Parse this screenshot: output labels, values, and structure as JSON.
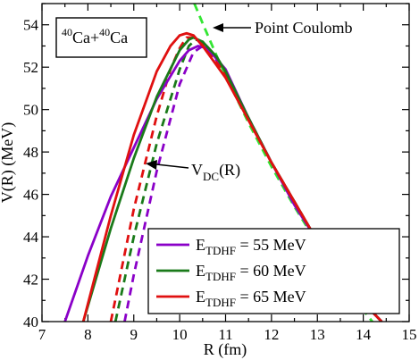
{
  "chart_data": {
    "type": "line",
    "title": "",
    "xlabel": "R (fm)",
    "ylabel": "V(R) (MeV)",
    "xlim": [
      7,
      15
    ],
    "ylim": [
      40,
      55
    ],
    "xticks": [
      "7",
      "8",
      "9",
      "10",
      "11",
      "12",
      "13",
      "14",
      "15"
    ],
    "yticks": [
      "40",
      "42",
      "44",
      "46",
      "48",
      "50",
      "52",
      "54"
    ],
    "grid": false,
    "legend_position": "bottom-right",
    "system_label": {
      "mass": "40",
      "element": "Ca",
      "plus": "+"
    },
    "annotations": {
      "point_coulomb": "Point Coulomb",
      "vdc_main": "V",
      "vdc_sub": "DC",
      "vdc_arg": "(R)"
    },
    "legend": [
      {
        "prefix": "E",
        "sub": "TDHF",
        "suffix": " = 55 MeV",
        "color": "#8a00c8"
      },
      {
        "prefix": "E",
        "sub": "TDHF",
        "suffix": " = 60 MeV",
        "color": "#1a7a1a"
      },
      {
        "prefix": "E",
        "sub": "TDHF",
        "suffix": " = 65 MeV",
        "color": "#e01010"
      }
    ],
    "series": [
      {
        "name": "E_TDHF = 55 MeV",
        "color": "#8a00c8",
        "dash": "solid",
        "x": [
          7.5,
          8.0,
          8.5,
          9.0,
          9.5,
          10.0,
          10.2,
          10.4,
          10.6,
          11.0,
          11.5,
          12.0,
          12.5,
          13.0,
          13.5,
          14.0,
          14.4
        ],
        "y": [
          40.0,
          43.1,
          45.9,
          48.2,
          50.5,
          52.3,
          52.8,
          53.0,
          52.9,
          51.9,
          49.6,
          47.5,
          45.5,
          43.8,
          42.3,
          40.9,
          40.0
        ]
      },
      {
        "name": "E_TDHF = 55 MeV (dashed)",
        "color": "#8a00c8",
        "dash": "dashed",
        "x": [
          8.8,
          9.0,
          9.5,
          10.0,
          10.3,
          10.5,
          10.7,
          11.0,
          11.5,
          12.0,
          13.0,
          14.0,
          14.4
        ],
        "y": [
          40.0,
          42.2,
          47.1,
          51.2,
          52.7,
          53.0,
          52.6,
          51.8,
          49.6,
          47.5,
          43.8,
          40.9,
          40.0
        ]
      },
      {
        "name": "E_TDHF = 60 MeV",
        "color": "#1a7a1a",
        "dash": "solid",
        "x": [
          7.9,
          8.5,
          9.0,
          9.5,
          10.0,
          10.2,
          10.3,
          10.5,
          10.8,
          11.0,
          11.5,
          12.0,
          13.0,
          14.0,
          14.4
        ],
        "y": [
          40.0,
          44.4,
          47.7,
          50.6,
          52.8,
          53.3,
          53.4,
          53.2,
          52.5,
          51.8,
          49.6,
          47.5,
          43.8,
          40.9,
          40.0
        ]
      },
      {
        "name": "E_TDHF = 60 MeV (dashed)",
        "color": "#1a7a1a",
        "dash": "dashed",
        "x": [
          8.6,
          9.0,
          9.5,
          10.0,
          10.2,
          10.35,
          10.5,
          10.8,
          11.0,
          11.5,
          12.0,
          13.0,
          14.0,
          14.4
        ],
        "y": [
          40.0,
          44.0,
          48.4,
          51.9,
          53.0,
          53.3,
          53.2,
          52.5,
          51.8,
          49.6,
          47.5,
          43.8,
          40.9,
          40.0
        ]
      },
      {
        "name": "E_TDHF = 65 MeV",
        "color": "#e01010",
        "dash": "solid",
        "x": [
          7.9,
          8.5,
          9.0,
          9.5,
          9.8,
          10.0,
          10.15,
          10.3,
          10.5,
          10.8,
          11.0,
          11.5,
          12.0,
          13.0,
          14.0,
          14.4
        ],
        "y": [
          40.0,
          45.0,
          48.8,
          51.8,
          53.0,
          53.5,
          53.6,
          53.5,
          53.0,
          52.1,
          51.5,
          49.5,
          47.5,
          43.8,
          40.9,
          40.0
        ]
      },
      {
        "name": "E_TDHF = 65 MeV (dashed)",
        "color": "#e01010",
        "dash": "dashed",
        "x": [
          8.5,
          9.0,
          9.5,
          9.8,
          10.0,
          10.15,
          10.3,
          10.5,
          10.8,
          11.0,
          11.5,
          12.0,
          13.0,
          14.0,
          14.4
        ],
        "y": [
          40.0,
          45.3,
          49.7,
          51.9,
          52.9,
          53.4,
          53.4,
          53.1,
          52.3,
          51.6,
          49.5,
          47.5,
          43.8,
          40.9,
          40.0
        ]
      },
      {
        "name": "Point Coulomb",
        "color": "#33e633",
        "dash": "dashed",
        "x": [
          10.32,
          10.5,
          10.8,
          11.0,
          11.5,
          12.0,
          12.5,
          13.0,
          13.5,
          14.0,
          14.4
        ],
        "y": [
          55.0,
          54.07,
          52.56,
          51.61,
          49.37,
          47.31,
          45.42,
          43.67,
          42.05,
          40.55,
          39.43
        ]
      }
    ]
  }
}
